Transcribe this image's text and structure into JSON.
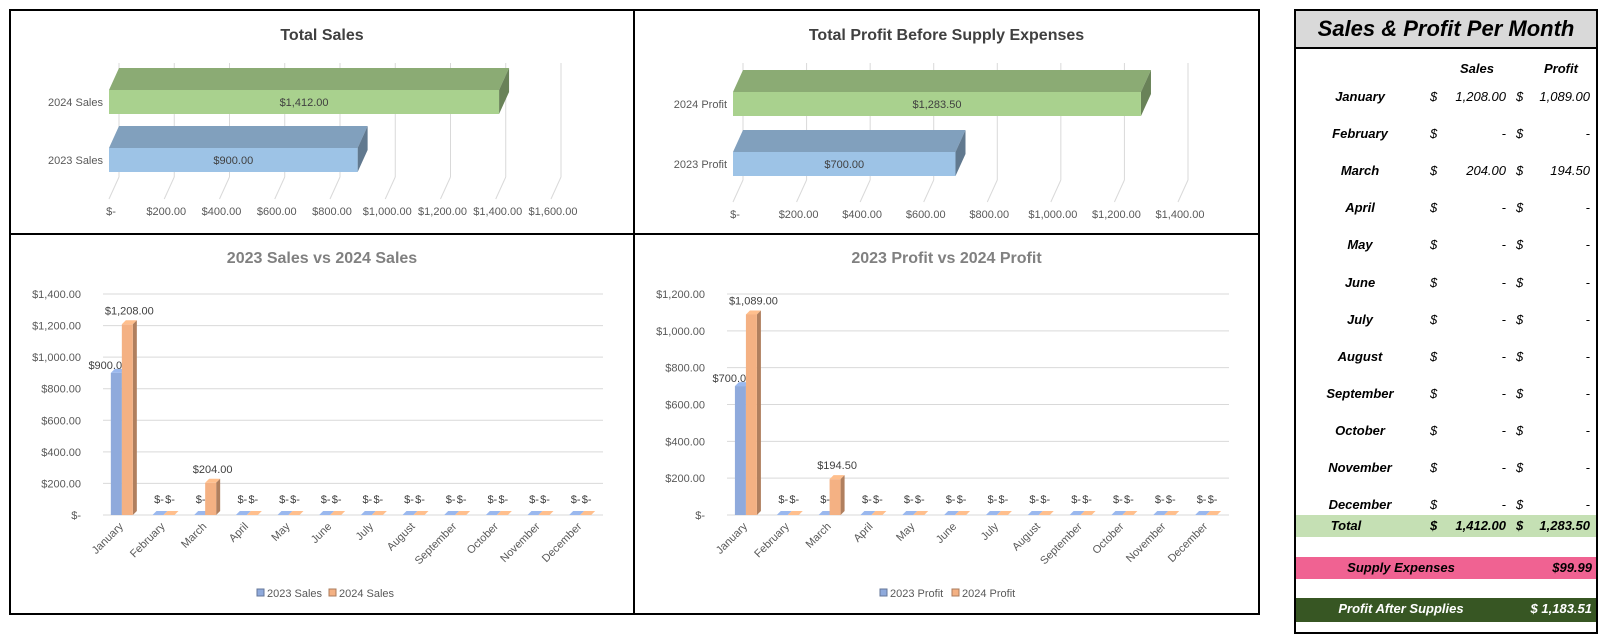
{
  "chart_data": [
    {
      "id": "total-sales",
      "type": "bar",
      "orientation": "horizontal",
      "title": "Total Sales",
      "categories": [
        "2024 Sales",
        "2023 Sales"
      ],
      "values": [
        1412.0,
        900.0
      ],
      "value_labels": [
        "$1,412.00",
        "$900.00"
      ],
      "colors": [
        "#a9d18e",
        "#9dc3e6"
      ],
      "xlim": [
        0,
        1600
      ],
      "tick_labels": [
        "$-",
        "$200.00",
        "$400.00",
        "$600.00",
        "$800.00",
        "$1,000.00",
        "$1,200.00",
        "$1,400.00",
        "$1,600.00"
      ],
      "grid": true
    },
    {
      "id": "total-profit",
      "type": "bar",
      "orientation": "horizontal",
      "title": "Total Profit Before Supply Expenses",
      "categories": [
        "2024 Profit",
        "2023 Profit"
      ],
      "values": [
        1283.5,
        700.0
      ],
      "value_labels": [
        "$1,283.50",
        "$700.00"
      ],
      "colors": [
        "#a9d18e",
        "#9dc3e6"
      ],
      "xlim": [
        0,
        1400
      ],
      "tick_labels": [
        "$-",
        "$200.00",
        "$400.00",
        "$600.00",
        "$800.00",
        "$1,000.00",
        "$1,200.00",
        "$1,400.00"
      ],
      "grid": true
    },
    {
      "id": "sales-compare",
      "type": "bar",
      "title": "2023 Sales vs 2024 Sales",
      "categories": [
        "January",
        "February",
        "March",
        "April",
        "May",
        "June",
        "July",
        "August",
        "September",
        "October",
        "November",
        "December"
      ],
      "series": [
        {
          "name": "2023 Sales",
          "color": "#8faadc",
          "values": [
            900,
            0,
            0,
            0,
            0,
            0,
            0,
            0,
            0,
            0,
            0,
            0
          ],
          "labels": [
            "$900.00",
            "$-",
            "$-",
            "$-",
            "$-",
            "$-",
            "$-",
            "$-",
            "$-",
            "$-",
            "$-",
            "$-"
          ]
        },
        {
          "name": "2024 Sales",
          "color": "#f4b183",
          "values": [
            1208,
            0,
            204,
            0,
            0,
            0,
            0,
            0,
            0,
            0,
            0,
            0
          ],
          "labels": [
            "$1,208.00",
            "$-",
            "$204.00",
            "$-",
            "$-",
            "$-",
            "$-",
            "$-",
            "$-",
            "$-",
            "$-",
            "$-"
          ]
        }
      ],
      "ylim": [
        0,
        1400
      ],
      "tick_labels": [
        "$-",
        "$200.00",
        "$400.00",
        "$600.00",
        "$800.00",
        "$1,000.00",
        "$1,200.00",
        "$1,400.00"
      ],
      "legend": "bottom",
      "grid": true
    },
    {
      "id": "profit-compare",
      "type": "bar",
      "title": "2023 Profit vs 2024 Profit",
      "categories": [
        "January",
        "February",
        "March",
        "April",
        "May",
        "June",
        "July",
        "August",
        "September",
        "October",
        "November",
        "December"
      ],
      "series": [
        {
          "name": "2023 Profit",
          "color": "#8faadc",
          "values": [
            700,
            0,
            0,
            0,
            0,
            0,
            0,
            0,
            0,
            0,
            0,
            0
          ],
          "labels": [
            "$700.00",
            "$-",
            "$-",
            "$-",
            "$-",
            "$-",
            "$-",
            "$-",
            "$-",
            "$-",
            "$-",
            "$-"
          ]
        },
        {
          "name": "2024 Profit",
          "color": "#f4b183",
          "values": [
            1089,
            0,
            194.5,
            0,
            0,
            0,
            0,
            0,
            0,
            0,
            0,
            0
          ],
          "labels": [
            "$1,089.00",
            "$-",
            "$194.50",
            "$-",
            "$-",
            "$-",
            "$-",
            "$-",
            "$-",
            "$-",
            "$-",
            "$-"
          ]
        }
      ],
      "ylim": [
        0,
        1200
      ],
      "tick_labels": [
        "$-",
        "$200.00",
        "$400.00",
        "$600.00",
        "$800.00",
        "$1,000.00",
        "$1,200.00"
      ],
      "legend": "bottom",
      "grid": true
    }
  ],
  "table": {
    "title": "Sales & Profit Per Month",
    "col_sales": "Sales",
    "col_profit": "Profit",
    "currency": "$",
    "rows": [
      {
        "month": "January",
        "sales": "1,208.00",
        "profit": "1,089.00"
      },
      {
        "month": "February",
        "sales": "-",
        "profit": "-"
      },
      {
        "month": "March",
        "sales": "204.00",
        "profit": "194.50"
      },
      {
        "month": "April",
        "sales": "-",
        "profit": "-"
      },
      {
        "month": "May",
        "sales": "-",
        "profit": "-"
      },
      {
        "month": "June",
        "sales": "-",
        "profit": "-"
      },
      {
        "month": "July",
        "sales": "-",
        "profit": "-"
      },
      {
        "month": "August",
        "sales": "-",
        "profit": "-"
      },
      {
        "month": "September",
        "sales": "-",
        "profit": "-"
      },
      {
        "month": "October",
        "sales": "-",
        "profit": "-"
      },
      {
        "month": "November",
        "sales": "-",
        "profit": "-"
      },
      {
        "month": "December",
        "sales": "-",
        "profit": "-"
      }
    ],
    "total": {
      "label": "Total",
      "sales": "1,412.00",
      "profit": "1,283.50",
      "color": "#c5e0b4"
    },
    "supply": {
      "label": "Supply Expenses",
      "value": "$99.99",
      "color": "#f06292"
    },
    "after": {
      "label": "Profit After Supplies",
      "value": "$ 1,183.51",
      "color": "#375623"
    }
  }
}
